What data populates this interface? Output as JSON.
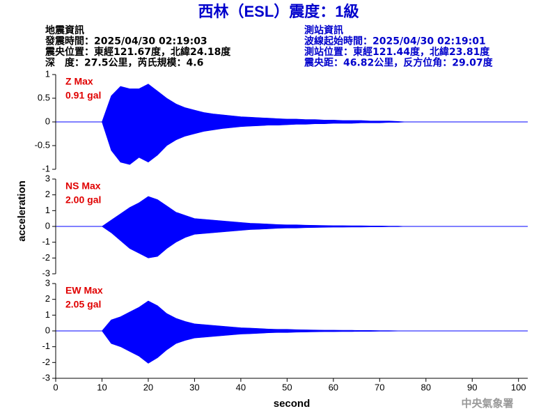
{
  "title": "西林（ESL）震度：1級",
  "info_left": [
    "地震資訊",
    "發震時間：2025/04/30 02:19:03",
    "震央位置：東經121.67度，北緯24.18度",
    "深　度：27.5公里，芮氏規模：4.6"
  ],
  "info_right": [
    "測站資訊",
    "波線起始時間：2025/04/30 02:19:01",
    "測站位置：東經121.44度，北緯23.81度",
    "震央距：46.82公里，反方位角：29.07度"
  ],
  "y_label": "acceleration",
  "watermark": "中央氣象署",
  "chart_data": [
    {
      "type": "area",
      "label": "Z Max",
      "peak_label": "0.91 gal",
      "color": "#0000ff",
      "x": [
        10,
        12,
        14,
        16,
        18,
        20,
        22,
        24,
        26,
        28,
        30,
        32,
        34,
        36,
        38,
        40,
        42,
        44,
        46,
        48,
        50,
        52,
        54,
        56,
        58,
        60,
        62,
        64,
        66,
        68,
        70,
        72,
        74,
        76
      ],
      "upper": [
        0,
        0.55,
        0.75,
        0.7,
        0.7,
        0.8,
        0.65,
        0.5,
        0.38,
        0.3,
        0.25,
        0.2,
        0.17,
        0.15,
        0.13,
        0.11,
        0.1,
        0.09,
        0.08,
        0.07,
        0.06,
        0.06,
        0.05,
        0.05,
        0.04,
        0.04,
        0.03,
        0.03,
        0.03,
        0.02,
        0.02,
        0.02,
        0.01,
        0
      ],
      "lower": [
        0,
        -0.6,
        -0.85,
        -0.9,
        -0.75,
        -0.85,
        -0.7,
        -0.5,
        -0.38,
        -0.3,
        -0.25,
        -0.2,
        -0.17,
        -0.14,
        -0.12,
        -0.1,
        -0.09,
        -0.08,
        -0.07,
        -0.07,
        -0.06,
        -0.05,
        -0.05,
        -0.04,
        -0.04,
        -0.03,
        -0.03,
        -0.03,
        -0.02,
        -0.02,
        -0.02,
        -0.01,
        -0.01,
        0
      ],
      "xlim": [
        0,
        102
      ],
      "ylim": [
        -1,
        1
      ],
      "yticks": [
        -1,
        -0.5,
        0,
        0.5,
        1
      ]
    },
    {
      "type": "area",
      "label": "NS Max",
      "peak_label": "2.00 gal",
      "color": "#0000ff",
      "x": [
        10,
        12,
        14,
        16,
        18,
        20,
        22,
        24,
        26,
        28,
        30,
        32,
        34,
        36,
        38,
        40,
        42,
        44,
        46,
        48,
        50,
        52,
        54,
        56,
        58,
        60,
        62,
        64,
        66,
        68,
        70,
        72,
        74,
        76
      ],
      "upper": [
        0,
        0.4,
        0.8,
        1.2,
        1.5,
        1.9,
        1.7,
        1.3,
        0.9,
        0.7,
        0.5,
        0.45,
        0.4,
        0.35,
        0.3,
        0.25,
        0.2,
        0.18,
        0.15,
        0.12,
        0.1,
        0.1,
        0.08,
        0.07,
        0.06,
        0.05,
        0.05,
        0.04,
        0.04,
        0.03,
        0.03,
        0.02,
        0.02,
        0
      ],
      "lower": [
        0,
        -0.4,
        -0.9,
        -1.4,
        -1.7,
        -2.0,
        -1.9,
        -1.4,
        -1.0,
        -0.7,
        -0.5,
        -0.45,
        -0.4,
        -0.35,
        -0.3,
        -0.25,
        -0.2,
        -0.18,
        -0.15,
        -0.12,
        -0.1,
        -0.1,
        -0.08,
        -0.07,
        -0.06,
        -0.05,
        -0.05,
        -0.04,
        -0.04,
        -0.03,
        -0.03,
        -0.02,
        -0.02,
        0
      ],
      "xlim": [
        0,
        102
      ],
      "ylim": [
        -3,
        3
      ],
      "yticks": [
        -3,
        -2,
        -1,
        0,
        1,
        2,
        3
      ]
    },
    {
      "type": "area",
      "label": "EW Max",
      "peak_label": "2.05 gal",
      "color": "#0000ff",
      "x": [
        10,
        12,
        14,
        16,
        18,
        20,
        22,
        24,
        26,
        28,
        30,
        32,
        34,
        36,
        38,
        40,
        42,
        44,
        46,
        48,
        50,
        52,
        54,
        56,
        58,
        60,
        62,
        64,
        66,
        68,
        70,
        72,
        74,
        76
      ],
      "upper": [
        0,
        0.7,
        0.9,
        1.2,
        1.5,
        1.9,
        1.6,
        1.1,
        0.8,
        0.6,
        0.45,
        0.4,
        0.35,
        0.3,
        0.25,
        0.2,
        0.18,
        0.15,
        0.12,
        0.1,
        0.1,
        0.08,
        0.07,
        0.06,
        0.05,
        0.05,
        0.04,
        0.04,
        0.03,
        0.03,
        0.02,
        0.02,
        0.01,
        0
      ],
      "lower": [
        0,
        -0.8,
        -1.0,
        -1.3,
        -1.6,
        -2.05,
        -1.7,
        -1.2,
        -0.8,
        -0.6,
        -0.45,
        -0.4,
        -0.35,
        -0.3,
        -0.25,
        -0.2,
        -0.18,
        -0.15,
        -0.12,
        -0.1,
        -0.1,
        -0.08,
        -0.07,
        -0.06,
        -0.05,
        -0.05,
        -0.04,
        -0.04,
        -0.03,
        -0.03,
        -0.02,
        -0.02,
        -0.01,
        0
      ],
      "xlim": [
        0,
        102
      ],
      "ylim": [
        -3,
        3
      ],
      "yticks": [
        -3,
        -2,
        -1,
        0,
        1,
        2,
        3
      ],
      "xticks": [
        0,
        10,
        20,
        30,
        40,
        50,
        60,
        70,
        80,
        90,
        100
      ],
      "xlabel": "second"
    }
  ]
}
